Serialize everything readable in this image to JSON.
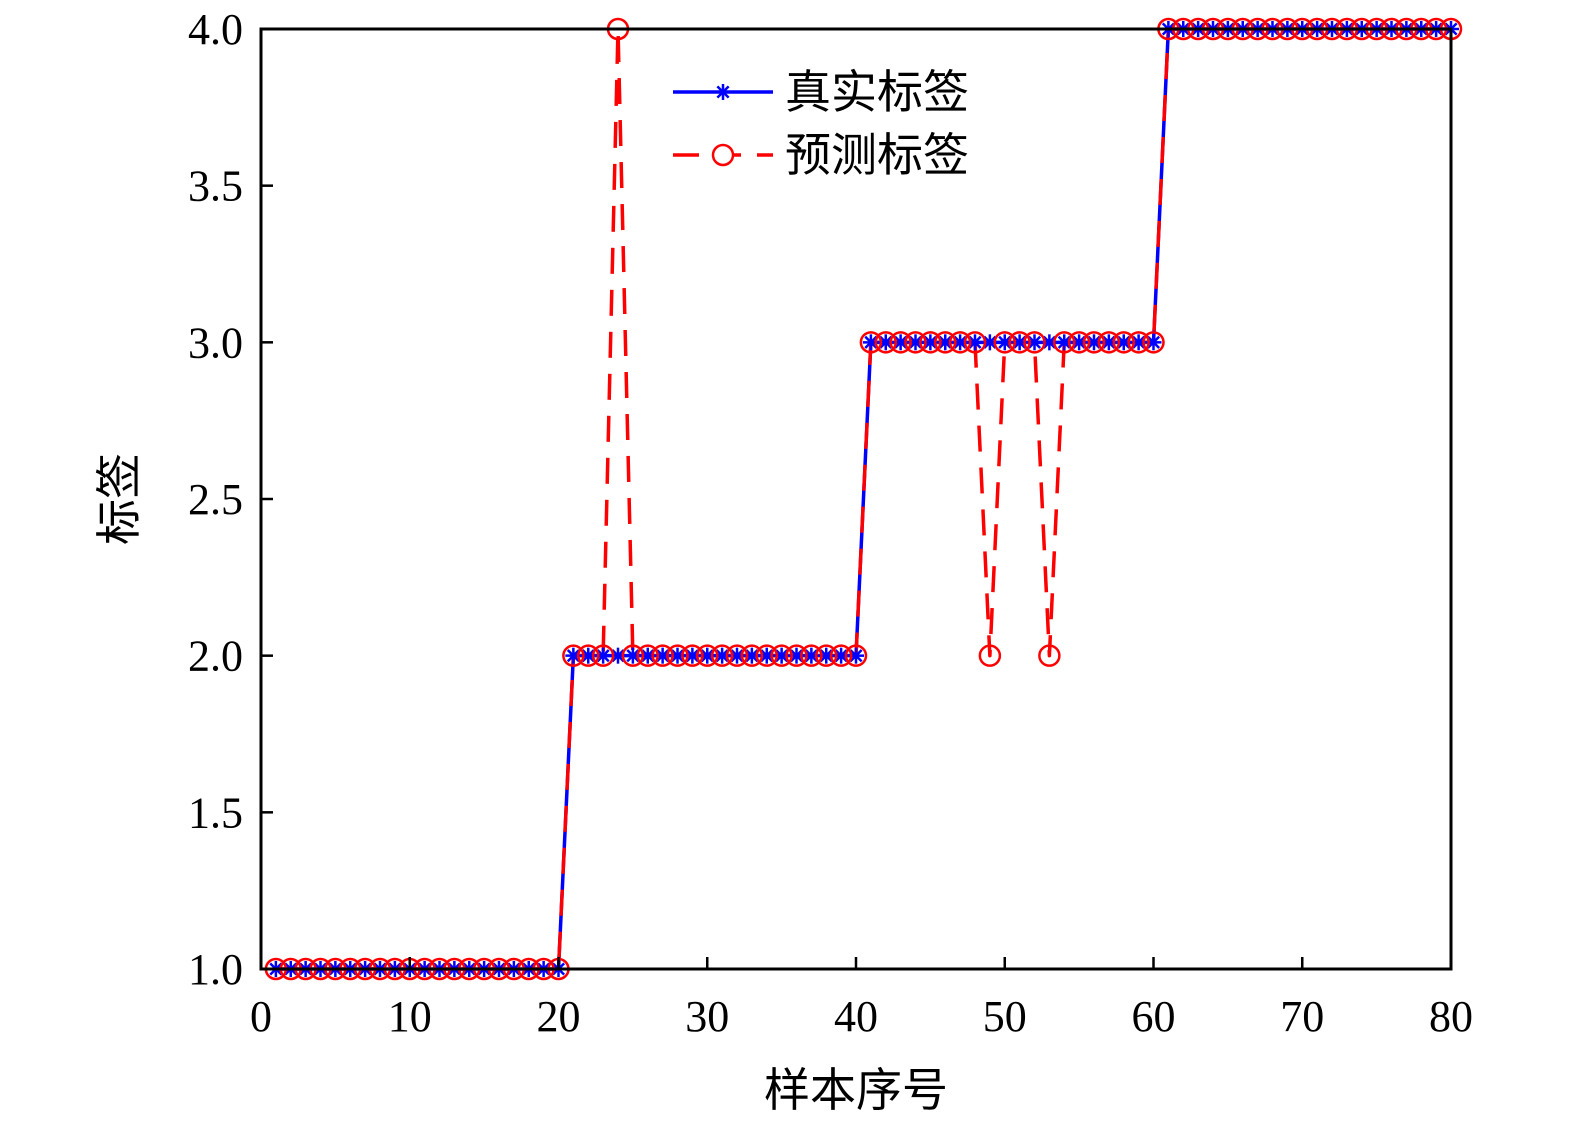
{
  "chart_data": {
    "type": "line",
    "xlabel": "样本序号",
    "ylabel": "标签",
    "xlim": [
      0,
      80
    ],
    "ylim": [
      1.0,
      4.0
    ],
    "xticks": [
      "0",
      "10",
      "20",
      "30",
      "40",
      "50",
      "60",
      "70",
      "80"
    ],
    "yticks": [
      "1.0",
      "1.5",
      "2.0",
      "2.5",
      "3.0",
      "3.5",
      "4.0"
    ],
    "grid": false,
    "legend_position": "top-center",
    "x": [
      1,
      2,
      3,
      4,
      5,
      6,
      7,
      8,
      9,
      10,
      11,
      12,
      13,
      14,
      15,
      16,
      17,
      18,
      19,
      20,
      21,
      22,
      23,
      24,
      25,
      26,
      27,
      28,
      29,
      30,
      31,
      32,
      33,
      34,
      35,
      36,
      37,
      38,
      39,
      40,
      41,
      42,
      43,
      44,
      45,
      46,
      47,
      48,
      49,
      50,
      51,
      52,
      53,
      54,
      55,
      56,
      57,
      58,
      59,
      60,
      61,
      62,
      63,
      64,
      65,
      66,
      67,
      68,
      69,
      70,
      71,
      72,
      73,
      74,
      75,
      76,
      77,
      78,
      79,
      80
    ],
    "series": [
      {
        "name": "真实标签",
        "color": "#0000ff",
        "line_style": "solid",
        "marker": "asterisk",
        "values": [
          1,
          1,
          1,
          1,
          1,
          1,
          1,
          1,
          1,
          1,
          1,
          1,
          1,
          1,
          1,
          1,
          1,
          1,
          1,
          1,
          2,
          2,
          2,
          2,
          2,
          2,
          2,
          2,
          2,
          2,
          2,
          2,
          2,
          2,
          2,
          2,
          2,
          2,
          2,
          2,
          3,
          3,
          3,
          3,
          3,
          3,
          3,
          3,
          3,
          3,
          3,
          3,
          3,
          3,
          3,
          3,
          3,
          3,
          3,
          3,
          4,
          4,
          4,
          4,
          4,
          4,
          4,
          4,
          4,
          4,
          4,
          4,
          4,
          4,
          4,
          4,
          4,
          4,
          4,
          4
        ]
      },
      {
        "name": "预测标签",
        "color": "#ff0000",
        "line_style": "dashed",
        "marker": "circle",
        "values": [
          1,
          1,
          1,
          1,
          1,
          1,
          1,
          1,
          1,
          1,
          1,
          1,
          1,
          1,
          1,
          1,
          1,
          1,
          1,
          1,
          2,
          2,
          2,
          4,
          2,
          2,
          2,
          2,
          2,
          2,
          2,
          2,
          2,
          2,
          2,
          2,
          2,
          2,
          2,
          2,
          3,
          3,
          3,
          3,
          3,
          3,
          3,
          3,
          2,
          3,
          3,
          3,
          2,
          3,
          3,
          3,
          3,
          3,
          3,
          3,
          4,
          4,
          4,
          4,
          4,
          4,
          4,
          4,
          4,
          4,
          4,
          4,
          4,
          4,
          4,
          4,
          4,
          4,
          4,
          4
        ]
      }
    ]
  }
}
